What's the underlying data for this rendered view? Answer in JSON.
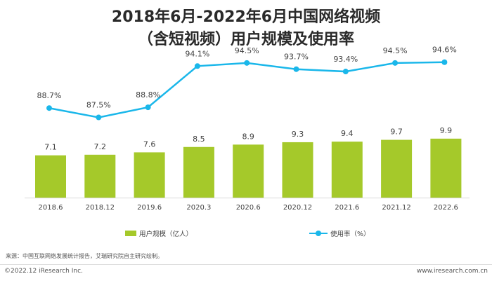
{
  "title": {
    "line1": "2018年6月-2022年6月中国网络视频",
    "line2": "（含短视频）用户规模及使用率"
  },
  "chart_data": {
    "type": "bar",
    "categories": [
      "2018.6",
      "2018.12",
      "2019.6",
      "2020.3",
      "2020.6",
      "2020.12",
      "2021.6",
      "2021.12",
      "2022.6"
    ],
    "series": [
      {
        "name": "用户规模（亿人）",
        "type": "bar",
        "color": "#a5c92a",
        "values": [
          7.1,
          7.2,
          7.6,
          8.5,
          8.9,
          9.3,
          9.4,
          9.7,
          9.9
        ],
        "labels": [
          "7.1",
          "7.2",
          "7.6",
          "8.5",
          "8.9",
          "9.3",
          "9.4",
          "9.7",
          "9.9"
        ]
      },
      {
        "name": "使用率（%）",
        "type": "line",
        "color": "#1ab7ea",
        "values": [
          88.7,
          87.5,
          88.8,
          94.1,
          94.5,
          93.7,
          93.4,
          94.5,
          94.6
        ],
        "labels": [
          "88.7%",
          "87.5%",
          "88.8%",
          "94.1%",
          "94.5%",
          "93.7%",
          "93.4%",
          "94.5%",
          "94.6%"
        ]
      }
    ],
    "legend_position": "bottom",
    "grid": false
  },
  "legend": {
    "bars_label": "用户规模（亿人）",
    "line_label": "使用率（%）"
  },
  "source": "来源：中国互联网络发展统计报告，艾瑞研究院自主研究绘制。",
  "footer": {
    "copyright": "©2022.12 iResearch Inc.",
    "website": "www.iresearch.com.cn"
  }
}
